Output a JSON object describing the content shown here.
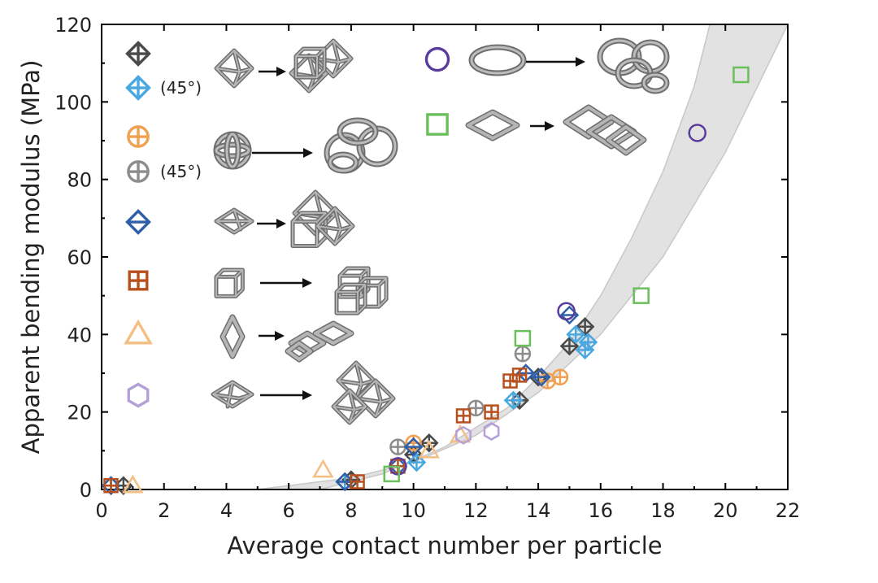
{
  "chart_data": {
    "type": "scatter",
    "xlabel": "Average contact number per particle",
    "ylabel": "Apparent bending modulus (MPa)",
    "xlim": [
      0,
      22
    ],
    "ylim": [
      0,
      120
    ],
    "xticks": [
      0,
      2,
      4,
      6,
      8,
      10,
      12,
      14,
      16,
      18,
      20,
      22
    ],
    "yticks": [
      0,
      20,
      40,
      60,
      80,
      100,
      120
    ],
    "grid": false,
    "band": {
      "lower": [
        [
          5.0,
          0
        ],
        [
          8,
          3
        ],
        [
          10,
          7
        ],
        [
          12,
          14
        ],
        [
          14,
          25
        ],
        [
          16,
          40
        ],
        [
          18,
          60
        ],
        [
          20,
          87
        ],
        [
          22,
          120
        ]
      ],
      "upper": [
        [
          7.0,
          0
        ],
        [
          9,
          4
        ],
        [
          11,
          11
        ],
        [
          13,
          21
        ],
        [
          14,
          29
        ],
        [
          15,
          38
        ],
        [
          16,
          50
        ],
        [
          17,
          65
        ],
        [
          18,
          82
        ],
        [
          19,
          104
        ],
        [
          19.5,
          120
        ]
      ]
    },
    "legend": [
      {
        "marker": "octahedron-cross",
        "color": "#4a4a4a",
        "note": ""
      },
      {
        "marker": "octahedron-cross",
        "color": "#4aa8e0",
        "note": "(45°)"
      },
      {
        "marker": "circle-cross",
        "color": "#f0a050",
        "note": ""
      },
      {
        "marker": "circle-cross",
        "color": "#8c8c8c",
        "note": "(45°)"
      },
      {
        "marker": "diamond-bar",
        "color": "#2e5fa8",
        "note": ""
      },
      {
        "marker": "square-cross",
        "color": "#b8501e",
        "note": ""
      },
      {
        "marker": "triangle",
        "color": "#f5be82",
        "note": ""
      },
      {
        "marker": "hexagon",
        "color": "#b4a0d8",
        "note": ""
      },
      {
        "marker": "circle",
        "color": "#5a3c9c",
        "note": ""
      },
      {
        "marker": "square",
        "color": "#6abf5a",
        "note": ""
      }
    ],
    "series": [
      {
        "marker": "octahedron-cross",
        "color": "#4a4a4a",
        "points": [
          [
            0.3,
            1
          ],
          [
            0.7,
            1
          ],
          [
            8.0,
            2.5
          ],
          [
            10.0,
            9
          ],
          [
            10.5,
            12
          ],
          [
            13.4,
            23
          ],
          [
            14.0,
            29
          ],
          [
            15.0,
            37
          ],
          [
            15.5,
            42
          ]
        ]
      },
      {
        "marker": "octahedron-cross",
        "color": "#4aa8e0",
        "points": [
          [
            7.8,
            2
          ],
          [
            10.1,
            7
          ],
          [
            13.2,
            23
          ],
          [
            15.2,
            40
          ],
          [
            15.6,
            38
          ],
          [
            15.5,
            36
          ]
        ]
      },
      {
        "marker": "circle-cross",
        "color": "#f0a050",
        "points": [
          [
            10.0,
            12
          ],
          [
            14.3,
            28
          ],
          [
            14.7,
            29
          ]
        ]
      },
      {
        "marker": "circle-cross",
        "color": "#8c8c8c",
        "points": [
          [
            9.5,
            11
          ],
          [
            12.0,
            21
          ],
          [
            13.5,
            35
          ]
        ]
      },
      {
        "marker": "diamond-bar",
        "color": "#2e5fa8",
        "points": [
          [
            0.3,
            1
          ],
          [
            7.8,
            2
          ],
          [
            9.5,
            6
          ],
          [
            10.0,
            11
          ],
          [
            13.6,
            30
          ],
          [
            14.1,
            29
          ],
          [
            15.0,
            45
          ]
        ]
      },
      {
        "marker": "square-cross",
        "color": "#b8501e",
        "points": [
          [
            0.3,
            1
          ],
          [
            8.2,
            2
          ],
          [
            9.5,
            6
          ],
          [
            11.6,
            19
          ],
          [
            12.5,
            20
          ],
          [
            13.1,
            28
          ],
          [
            13.4,
            29.5
          ]
        ]
      },
      {
        "marker": "triangle",
        "color": "#f5be82",
        "points": [
          [
            1.0,
            1
          ],
          [
            7.1,
            5
          ],
          [
            10.5,
            10
          ],
          [
            11.5,
            14
          ]
        ]
      },
      {
        "marker": "hexagon",
        "color": "#b4a0d8",
        "points": [
          [
            11.6,
            14
          ],
          [
            12.5,
            15
          ]
        ]
      },
      {
        "marker": "circle",
        "color": "#5a3c9c",
        "points": [
          [
            9.5,
            6
          ],
          [
            14.9,
            46
          ],
          [
            19.1,
            92
          ]
        ]
      },
      {
        "marker": "square",
        "color": "#6abf5a",
        "points": [
          [
            9.3,
            4
          ],
          [
            13.5,
            39
          ],
          [
            17.3,
            50
          ],
          [
            20.5,
            107
          ]
        ]
      }
    ]
  }
}
